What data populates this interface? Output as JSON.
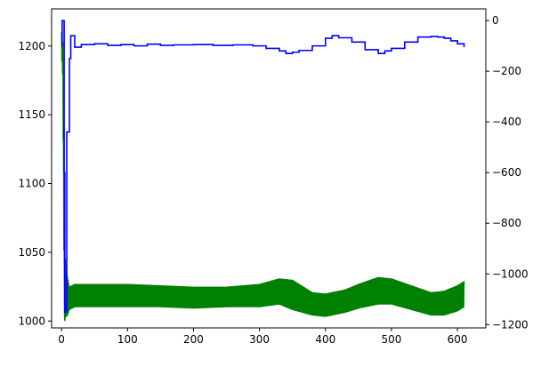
{
  "chart_data": {
    "type": "line",
    "title": "",
    "xlabel": "",
    "ylabel": "",
    "y2label": "",
    "grid": false,
    "legend": "none",
    "xlim": [
      -15,
      643
    ],
    "ylim": [
      995,
      1227
    ],
    "y2lim": [
      -1213,
      46
    ],
    "x_ticks": [
      0,
      100,
      200,
      300,
      400,
      500,
      600
    ],
    "y_ticks": [
      1000,
      1050,
      1100,
      1150,
      1200
    ],
    "y2_ticks": [
      0,
      -200,
      -400,
      -600,
      -800,
      -1000,
      -1200
    ],
    "colors": {
      "series_left": "#008000",
      "series_right": "#0000ff"
    },
    "series": [
      {
        "axis": "left",
        "color": "#008000",
        "style": "dense oscillating band",
        "x": [
          0,
          2,
          4,
          5,
          6,
          8,
          10,
          12,
          20,
          50,
          100,
          150,
          200,
          250,
          300,
          330,
          350,
          380,
          400,
          430,
          450,
          480,
          500,
          530,
          560,
          580,
          600,
          610
        ],
        "y_upper": [
          1210,
          1203,
          1055,
          1000,
          1045,
          1035,
          1030,
          1025,
          1027,
          1027,
          1027,
          1026,
          1025,
          1025,
          1027,
          1031,
          1030,
          1021,
          1020,
          1023,
          1027,
          1032,
          1031,
          1026,
          1021,
          1022,
          1026,
          1029
        ],
        "y_lower": [
          1193,
          1175,
          1010,
          1000,
          1003,
          1003,
          1005,
          1008,
          1010,
          1010,
          1010,
          1010,
          1009,
          1010,
          1010,
          1012,
          1008,
          1004,
          1003,
          1006,
          1009,
          1012,
          1012,
          1008,
          1004,
          1004,
          1007,
          1010
        ]
      },
      {
        "axis": "right",
        "color": "#0000ff",
        "style": "step line",
        "x": [
          0,
          1,
          2,
          3,
          4,
          5,
          6,
          7,
          8,
          10,
          12,
          14,
          16,
          20,
          30,
          50,
          70,
          90,
          110,
          130,
          150,
          170,
          200,
          230,
          260,
          290,
          310,
          330,
          340,
          350,
          360,
          380,
          400,
          410,
          420,
          440,
          460,
          480,
          490,
          500,
          520,
          540,
          560,
          570,
          580,
          590,
          600,
          610
        ],
        "y": [
          -100,
          0,
          0,
          0,
          -600,
          -1150,
          -1150,
          -1150,
          -440,
          -440,
          -150,
          -60,
          -60,
          -105,
          -95,
          -92,
          -98,
          -95,
          -100,
          -93,
          -98,
          -96,
          -95,
          -98,
          -96,
          -100,
          -110,
          -120,
          -130,
          -125,
          -118,
          -100,
          -70,
          -60,
          -68,
          -85,
          -115,
          -130,
          -120,
          -110,
          -85,
          -65,
          -63,
          -65,
          -70,
          -80,
          -92,
          -105
        ]
      }
    ]
  }
}
